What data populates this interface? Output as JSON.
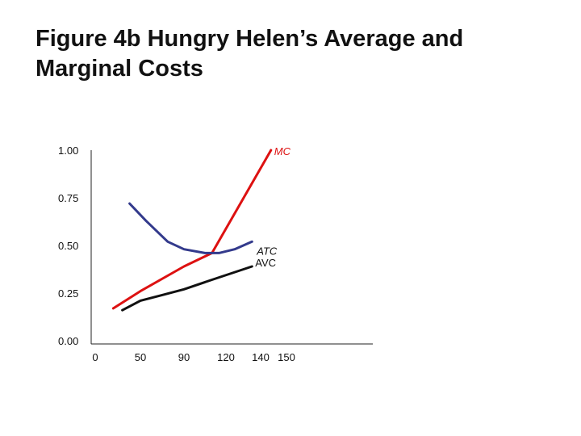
{
  "title": {
    "line1": "Figure 4b Hungry Helen’s Average and",
    "line2": "Marginal Costs"
  },
  "chart_data": {
    "type": "line",
    "title": "Figure 4b Hungry Helen’s Average and Marginal Costs",
    "xlabel": "",
    "ylabel": "",
    "x_ticks": [
      {
        "value": 0,
        "label": "0"
      },
      {
        "value": 50,
        "label": "50"
      },
      {
        "value": 90,
        "label": "90"
      },
      {
        "value": 120,
        "label": "120"
      },
      {
        "value": 140,
        "label": "140"
      },
      {
        "value": 150,
        "label": "150"
      }
    ],
    "y_ticks": [
      {
        "value": 0.0,
        "label": "0.00"
      },
      {
        "value": 0.25,
        "label": "0.25"
      },
      {
        "value": 0.5,
        "label": "0.50"
      },
      {
        "value": 0.75,
        "label": "0.75"
      },
      {
        "value": 1.0,
        "label": "1.00"
      }
    ],
    "ylim": [
      0,
      1.0
    ],
    "grid": false,
    "legend": "labels at line ends",
    "series": [
      {
        "name": "MC",
        "color": "#dd1111",
        "points": [
          [
            20,
            0.17
          ],
          [
            50,
            0.26
          ],
          [
            90,
            0.39
          ],
          [
            110,
            0.46
          ],
          [
            144,
            1.0
          ]
        ]
      },
      {
        "name": "ATC",
        "color": "#333a8c",
        "points": [
          [
            38,
            0.72
          ],
          [
            55,
            0.63
          ],
          [
            75,
            0.52
          ],
          [
            90,
            0.48
          ],
          [
            105,
            0.46
          ],
          [
            115,
            0.46
          ],
          [
            125,
            0.48
          ],
          [
            135,
            0.52
          ]
        ]
      },
      {
        "name": "AVC",
        "color": "#111111",
        "points": [
          [
            30,
            0.16
          ],
          [
            50,
            0.21
          ],
          [
            70,
            0.24
          ],
          [
            90,
            0.27
          ],
          [
            110,
            0.32
          ],
          [
            135,
            0.39
          ]
        ]
      }
    ]
  }
}
